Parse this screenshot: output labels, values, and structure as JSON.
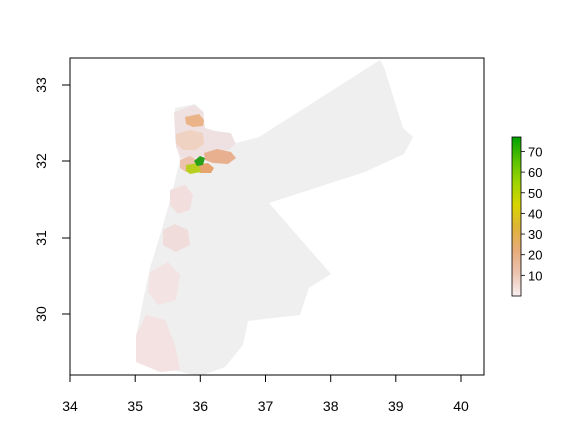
{
  "map": {
    "x_axis": {
      "ticks": [
        "34",
        "35",
        "36",
        "37",
        "38",
        "39",
        "40"
      ],
      "range": [
        34,
        40
      ]
    },
    "y_axis": {
      "ticks": [
        "30",
        "31",
        "32",
        "33"
      ],
      "range": [
        29.1,
        33.4
      ]
    },
    "colors": {
      "background_region": "#efefef",
      "low": "#f3dada",
      "mid_low": "#ebb89a",
      "mid": "#e4a368",
      "high": "#b8cc1e",
      "highest": "#2ea01e"
    }
  },
  "legend": {
    "labels": [
      "10",
      "20",
      "30",
      "40",
      "50",
      "60",
      "70"
    ],
    "values": [
      10,
      20,
      30,
      40,
      50,
      60,
      70
    ],
    "range": [
      0,
      77
    ],
    "gradient": [
      "#f8f0f0",
      "#ebc3b0",
      "#e7ab7a",
      "#dfb33a",
      "#d9d400",
      "#9ed400",
      "#56c000",
      "#00a000"
    ]
  }
}
